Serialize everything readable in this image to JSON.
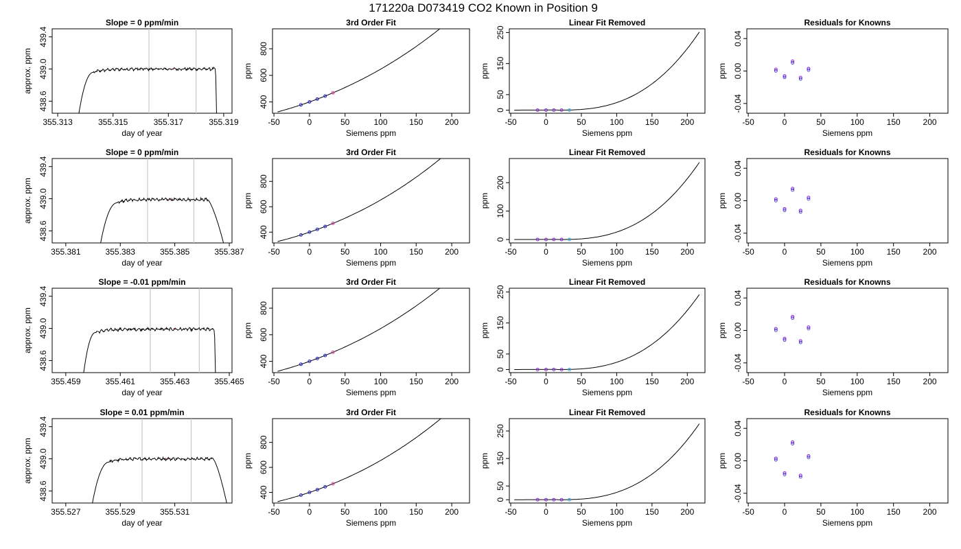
{
  "figure_title": "171220a      D073419    CO2 Known in Position  9",
  "colors": {
    "line": "#000000",
    "axes": "#000000",
    "vline": "#c8c8c8",
    "noise_red": "#e02020",
    "point_blue": "#2222cc",
    "point_cyan": "#33aadd",
    "point_purple": "#8822dd",
    "point_pink": "#dd44aa"
  },
  "chart_data": [
    {
      "type": "line",
      "title": "Slope =  0  ppm/min",
      "xlabel": "day of year",
      "ylabel": "approx. ppm",
      "xlim": [
        355.3128,
        355.3193
      ],
      "ylim": [
        438.45,
        439.5
      ],
      "xticks": [
        355.313,
        355.315,
        355.317,
        355.319
      ],
      "xtick_labels": [
        "355.313",
        "355.315",
        "355.317",
        "355.319"
      ],
      "yticks": [
        438.6,
        439.0,
        439.4
      ],
      "ytick_labels": [
        "438.6",
        "439.0",
        "439.4"
      ],
      "vlines": [
        355.3163,
        355.318
      ],
      "plateau": 439.0,
      "rise": [
        355.3137,
        355.3143
      ],
      "fall": [
        355.3187,
        355.31875
      ],
      "grid": false
    },
    {
      "type": "line",
      "title": "3rd Order Fit",
      "xlabel": "Siemens ppm",
      "ylabel": "ppm",
      "xlim": [
        -52,
        225
      ],
      "ylim": [
        315,
        950
      ],
      "xticks": [
        -50,
        0,
        50,
        100,
        150,
        200
      ],
      "xtick_labels": [
        "-50",
        "0",
        "50",
        "100",
        "150",
        "200"
      ],
      "yticks": [
        400,
        600,
        800
      ],
      "ytick_labels": [
        "400",
        "600",
        "800"
      ],
      "curve": {
        "a": 400,
        "b": 1.9,
        "c": 0.0052,
        "d": 4.5e-06
      },
      "points_x": [
        -12,
        0,
        11,
        22,
        33
      ],
      "grid": false
    },
    {
      "type": "line",
      "title": "Linear Fit Removed",
      "xlabel": "Siemens ppm",
      "ylabel": "ppm",
      "xlim": [
        -52,
        225
      ],
      "ylim": [
        -10,
        262
      ],
      "xticks": [
        -50,
        0,
        50,
        100,
        150,
        200
      ],
      "xtick_labels": [
        "-50",
        "0",
        "50",
        "100",
        "150",
        "200"
      ],
      "yticks": [
        0,
        50,
        150,
        250
      ],
      "ytick_labels": [
        "0",
        "50",
        "150",
        "250"
      ],
      "curve_end": 255,
      "points_x": [
        -12,
        0,
        11,
        22,
        33
      ],
      "grid": false
    },
    {
      "type": "scatter",
      "title": "Residuals for Knowns",
      "xlabel": "Siemens ppm",
      "ylabel": "ppm",
      "xlim": [
        -52,
        225
      ],
      "ylim": [
        -0.052,
        0.052
      ],
      "xticks": [
        -50,
        0,
        50,
        100,
        150,
        200
      ],
      "xtick_labels": [
        "-50",
        "0",
        "50",
        "100",
        "150",
        "200"
      ],
      "yticks": [
        -0.04,
        0.0,
        0.04
      ],
      "ytick_labels": [
        "-0.04",
        "0.00",
        "0.04"
      ],
      "x": [
        -12,
        0,
        11,
        22,
        33
      ],
      "y": [
        0.002,
        -0.006,
        0.012,
        -0.008,
        0.003
      ],
      "grid": false
    },
    {
      "type": "line",
      "title": "Slope =  0  ppm/min",
      "xlabel": "day of year",
      "ylabel": "approx. ppm",
      "xlim": [
        355.3805,
        355.3871
      ],
      "ylim": [
        438.45,
        439.5
      ],
      "xticks": [
        355.381,
        355.383,
        355.385,
        355.387
      ],
      "xtick_labels": [
        "355.381",
        "355.383",
        "355.385",
        "355.387"
      ],
      "yticks": [
        438.6,
        439.0,
        439.4
      ],
      "ytick_labels": [
        "438.6",
        "439.0",
        "439.4"
      ],
      "vlines": [
        355.384,
        355.3857
      ],
      "plateau": 438.99,
      "rise": [
        355.3822,
        355.3829
      ],
      "fall": [
        355.3862,
        355.3869
      ],
      "grid": false
    },
    {
      "type": "line",
      "title": "3rd Order Fit",
      "xlabel": "Siemens ppm",
      "ylabel": "ppm",
      "xlim": [
        -52,
        225
      ],
      "ylim": [
        315,
        980
      ],
      "xticks": [
        -50,
        0,
        50,
        100,
        150,
        200
      ],
      "xtick_labels": [
        "-50",
        "0",
        "50",
        "100",
        "150",
        "200"
      ],
      "yticks": [
        400,
        600,
        800
      ],
      "ytick_labels": [
        "400",
        "600",
        "800"
      ],
      "curve": {
        "a": 400,
        "b": 1.9,
        "c": 0.0058,
        "d": 5.2e-06
      },
      "points_x": [
        -12,
        0,
        11,
        22,
        33
      ],
      "grid": false
    },
    {
      "type": "line",
      "title": "Linear Fit Removed",
      "xlabel": "Siemens ppm",
      "ylabel": "ppm",
      "xlim": [
        -52,
        225
      ],
      "ylim": [
        -12,
        285
      ],
      "xticks": [
        -50,
        0,
        50,
        100,
        150,
        200
      ],
      "xtick_labels": [
        "-50",
        "0",
        "50",
        "100",
        "150",
        "200"
      ],
      "yticks": [
        0,
        100,
        200
      ],
      "ytick_labels": [
        "0",
        "100",
        "200"
      ],
      "curve_end": 275,
      "points_x": [
        -12,
        0,
        11,
        22,
        33
      ],
      "grid": false
    },
    {
      "type": "scatter",
      "title": "Residuals for Knowns",
      "xlabel": "Siemens ppm",
      "ylabel": "ppm",
      "xlim": [
        -52,
        225
      ],
      "ylim": [
        -0.052,
        0.052
      ],
      "xticks": [
        -50,
        0,
        50,
        100,
        150,
        200
      ],
      "xtick_labels": [
        "-50",
        "0",
        "50",
        "100",
        "150",
        "200"
      ],
      "yticks": [
        -0.04,
        0.0,
        0.04
      ],
      "ytick_labels": [
        "-0.04",
        "0.00",
        "0.04"
      ],
      "x": [
        -12,
        0,
        11,
        22,
        33
      ],
      "y": [
        0.002,
        -0.01,
        0.015,
        -0.012,
        0.004
      ],
      "grid": false
    },
    {
      "type": "line",
      "title": "Slope =  -0.01  ppm/min",
      "xlabel": "day of year",
      "ylabel": "approx. ppm",
      "xlim": [
        355.4585,
        355.4651
      ],
      "ylim": [
        438.45,
        439.5
      ],
      "xticks": [
        355.459,
        355.461,
        355.463,
        355.465
      ],
      "xtick_labels": [
        "355.459",
        "355.461",
        "355.463",
        "355.465"
      ],
      "yticks": [
        438.6,
        439.0,
        439.4
      ],
      "ytick_labels": [
        "438.6",
        "439.0",
        "439.4"
      ],
      "vlines": [
        355.4621,
        355.4639
      ],
      "plateau": 438.99,
      "rise": [
        355.4596,
        355.4601
      ],
      "fall": [
        355.46445,
        355.4645
      ],
      "grid": false
    },
    {
      "type": "line",
      "title": "3rd Order Fit",
      "xlabel": "Siemens ppm",
      "ylabel": "ppm",
      "xlim": [
        -52,
        225
      ],
      "ylim": [
        315,
        950
      ],
      "xticks": [
        -50,
        0,
        50,
        100,
        150,
        200
      ],
      "xtick_labels": [
        "-50",
        "0",
        "50",
        "100",
        "150",
        "200"
      ],
      "yticks": [
        400,
        600,
        800
      ],
      "ytick_labels": [
        "400",
        "600",
        "800"
      ],
      "curve": {
        "a": 400,
        "b": 1.9,
        "c": 0.0052,
        "d": 4.5e-06
      },
      "points_x": [
        -12,
        0,
        11,
        22,
        33
      ],
      "grid": false
    },
    {
      "type": "line",
      "title": "Linear Fit Removed",
      "xlabel": "Siemens ppm",
      "ylabel": "ppm",
      "xlim": [
        -52,
        225
      ],
      "ylim": [
        -10,
        262
      ],
      "xticks": [
        -50,
        0,
        50,
        100,
        150,
        200
      ],
      "xtick_labels": [
        "-50",
        "0",
        "50",
        "100",
        "150",
        "200"
      ],
      "yticks": [
        0,
        50,
        150,
        250
      ],
      "ytick_labels": [
        "0",
        "50",
        "150",
        "250"
      ],
      "curve_end": 245,
      "points_x": [
        -12,
        0,
        11,
        22,
        33
      ],
      "grid": false
    },
    {
      "type": "scatter",
      "title": "Residuals for Knowns",
      "xlabel": "Siemens ppm",
      "ylabel": "ppm",
      "xlim": [
        -52,
        225
      ],
      "ylim": [
        -0.052,
        0.052
      ],
      "xticks": [
        -50,
        0,
        50,
        100,
        150,
        200
      ],
      "xtick_labels": [
        "-50",
        "0",
        "50",
        "100",
        "150",
        "200"
      ],
      "yticks": [
        -0.04,
        0.0,
        0.04
      ],
      "ytick_labels": [
        "-0.04",
        "0.00",
        "0.04"
      ],
      "x": [
        -12,
        0,
        11,
        22,
        33
      ],
      "y": [
        0.002,
        -0.01,
        0.017,
        -0.013,
        0.004
      ],
      "grid": false
    },
    {
      "type": "line",
      "title": "Slope =  0.01  ppm/min",
      "xlabel": "day of year",
      "ylabel": "approx. ppm",
      "xlim": [
        355.5265,
        355.5331
      ],
      "ylim": [
        438.45,
        439.5
      ],
      "xticks": [
        355.527,
        355.529,
        355.531
      ],
      "xtick_labels": [
        "355.527",
        "355.529",
        "355.531"
      ],
      "yticks": [
        438.6,
        439.0,
        439.4
      ],
      "ytick_labels": [
        "438.6",
        "439.0",
        "439.4"
      ],
      "vlines": [
        355.5298,
        355.5316
      ],
      "plateau": 439.0,
      "rise": [
        355.5279,
        355.5286
      ],
      "fall": [
        355.5324,
        355.533
      ],
      "grid": false
    },
    {
      "type": "line",
      "title": "3rd Order Fit",
      "xlabel": "Siemens ppm",
      "ylabel": "ppm",
      "xlim": [
        -52,
        225
      ],
      "ylim": [
        315,
        990
      ],
      "xticks": [
        -50,
        0,
        50,
        100,
        150,
        200
      ],
      "xtick_labels": [
        "-50",
        "0",
        "50",
        "100",
        "150",
        "200"
      ],
      "yticks": [
        400,
        600,
        800
      ],
      "ytick_labels": [
        "400",
        "600",
        "800"
      ],
      "curve": {
        "a": 400,
        "b": 1.9,
        "c": 0.006,
        "d": 5.5e-06
      },
      "points_x": [
        -12,
        0,
        11,
        22,
        33
      ],
      "grid": false
    },
    {
      "type": "line",
      "title": "Linear Fit Removed",
      "xlabel": "Siemens ppm",
      "ylabel": "ppm",
      "xlim": [
        -52,
        225
      ],
      "ylim": [
        -12,
        295
      ],
      "xticks": [
        -50,
        0,
        50,
        100,
        150,
        200
      ],
      "xtick_labels": [
        "-50",
        "0",
        "50",
        "100",
        "150",
        "200"
      ],
      "yticks": [
        0,
        50,
        150,
        250
      ],
      "ytick_labels": [
        "0",
        "50",
        "150",
        "250"
      ],
      "curve_end": 280,
      "points_x": [
        -12,
        0,
        11,
        22,
        33
      ],
      "grid": false
    },
    {
      "type": "scatter",
      "title": "Residuals for Knowns",
      "xlabel": "Siemens ppm",
      "ylabel": "ppm",
      "xlim": [
        -52,
        225
      ],
      "ylim": [
        -0.052,
        0.052
      ],
      "xticks": [
        -50,
        0,
        50,
        100,
        150,
        200
      ],
      "xtick_labels": [
        "-50",
        "0",
        "50",
        "100",
        "150",
        "200"
      ],
      "yticks": [
        -0.04,
        0.0,
        0.04
      ],
      "ytick_labels": [
        "-0.04",
        "0.00",
        "0.04"
      ],
      "x": [
        -12,
        0,
        11,
        22,
        33
      ],
      "y": [
        0.003,
        -0.015,
        0.023,
        -0.018,
        0.006
      ],
      "grid": false
    }
  ]
}
